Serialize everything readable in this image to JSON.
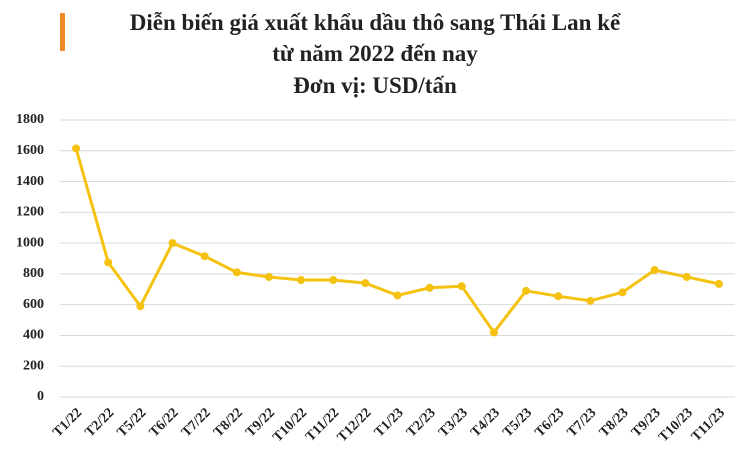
{
  "chart_data": {
    "type": "line",
    "title": [
      "Diễn biến giá xuất khẩu dầu thô sang Thái Lan kể",
      "từ năm 2022 đến nay"
    ],
    "subtitle": "Đơn vị: USD/tấn",
    "categories": [
      "T1/22",
      "T2/22",
      "T5/22",
      "T6/22",
      "T7/22",
      "T8/22",
      "T9/22",
      "T10/22",
      "T11/22",
      "T12/22",
      "T1/23",
      "T2/23",
      "T3/23",
      "T4/23",
      "T5/23",
      "T6/23",
      "T7/23",
      "T8/23",
      "T9/23",
      "T10/23",
      "T11/23"
    ],
    "values": [
      1615,
      875,
      590,
      1000,
      915,
      810,
      780,
      760,
      760,
      740,
      660,
      710,
      720,
      420,
      690,
      655,
      625,
      680,
      825,
      780,
      735
    ],
    "color": "#f5c211",
    "ylim": [
      0,
      1800
    ],
    "yticks": [
      0,
      200,
      400,
      600,
      800,
      1000,
      1200,
      1400,
      1600,
      1800
    ],
    "grid": true
  }
}
